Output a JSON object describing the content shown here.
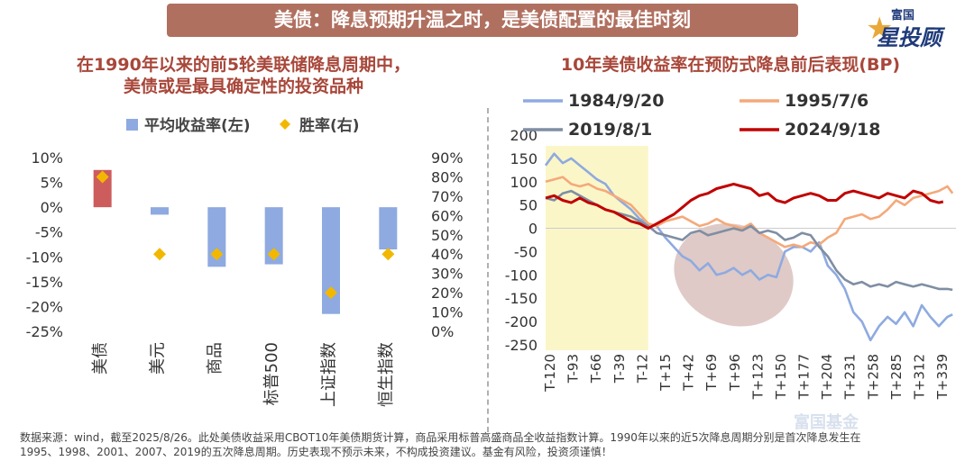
{
  "header": {
    "banner_title": "美债：降息预期升温之时，是美债配置的最佳时刻",
    "logo_top": "富国",
    "logo_main": "星投顾",
    "watermark": "富国基金"
  },
  "left_panel": {
    "title_line1": "在1990年以来的前5轮美联储降息周期中，",
    "title_line2": "美债或是最具确定性的投资品种"
  },
  "right_panel": {
    "title": "10年美债收益率在预防式降息前后表现(BP)"
  },
  "footnote": {
    "line1": "数据来源：wind，截至2025/8/26。此处美债收益采用CBOT10年美债期货计算，商品采用标普高盛商品全收益指数计算。1990年以来的近5次降息周期分别是首次降息发生在",
    "line2": "1995、1998、2001、2007、2019的五次降息周期。历史表现不预示未来，不构成投资建议。基金有风险，投资须谨慎！"
  },
  "colors": {
    "bar_blue": "#8eaae0",
    "bar_red": "#cd5c5c",
    "diamond": "#f2b800",
    "series_1984": "#8eaae0",
    "series_1995": "#f4a97a",
    "series_2019": "#7f8ea3",
    "series_2024": "#c00000",
    "highlight": "#fbf6c8",
    "ellipse": "#c9a6a2"
  },
  "chart_data": [
    {
      "type": "bar",
      "categories": [
        "美债",
        "美元",
        "商品",
        "标普500",
        "上证指数",
        "恒生指数"
      ],
      "series": [
        {
          "name": "平均收益率(左)",
          "axis": "left",
          "values": [
            7.5,
            -1.5,
            -12.0,
            -11.5,
            -21.5,
            -8.5
          ]
        },
        {
          "name": "胜率(右)",
          "axis": "right",
          "marker": "diamond",
          "values": [
            80,
            40,
            40,
            40,
            20,
            40
          ]
        }
      ],
      "left_axis": {
        "ylim": [
          -25,
          10
        ],
        "ticks": [
          "10%",
          "5%",
          "0%",
          "-5%",
          "-10%",
          "-15%",
          "-20%",
          "-25%"
        ]
      },
      "right_axis": {
        "ylim": [
          0,
          90
        ],
        "ticks": [
          "90%",
          "80%",
          "70%",
          "60%",
          "50%",
          "40%",
          "30%",
          "20%",
          "10%",
          "0%"
        ]
      },
      "legend": {
        "placement": "top"
      }
    },
    {
      "type": "line",
      "x_ticks": [
        "T-120",
        "T-93",
        "T-66",
        "T-39",
        "T-12",
        "T+15",
        "T+42",
        "T+69",
        "T+96",
        "T+123",
        "T+150",
        "T+177",
        "T+204",
        "T+231",
        "T+258",
        "T+285",
        "T+312",
        "T+339"
      ],
      "xlim": [
        -120,
        360
      ],
      "ylim": [
        -250,
        200
      ],
      "y_ticks": [
        "200",
        "150",
        "100",
        "50",
        "0",
        "-50",
        "-100",
        "-150",
        "-200",
        "-250"
      ],
      "highlight_range": [
        -120,
        0
      ],
      "legend": {
        "placement": "top"
      },
      "series": [
        {
          "name": "1984/9/20",
          "key": "series_1984",
          "points": [
            [
              -120,
              135
            ],
            [
              -110,
              160
            ],
            [
              -100,
              140
            ],
            [
              -90,
              150
            ],
            [
              -80,
              135
            ],
            [
              -70,
              120
            ],
            [
              -60,
              105
            ],
            [
              -50,
              95
            ],
            [
              -40,
              70
            ],
            [
              -30,
              55
            ],
            [
              -20,
              40
            ],
            [
              -10,
              20
            ],
            [
              0,
              10
            ],
            [
              10,
              5
            ],
            [
              20,
              -20
            ],
            [
              30,
              -40
            ],
            [
              40,
              -60
            ],
            [
              50,
              -70
            ],
            [
              60,
              -90
            ],
            [
              70,
              -75
            ],
            [
              80,
              -100
            ],
            [
              90,
              -95
            ],
            [
              100,
              -85
            ],
            [
              110,
              -100
            ],
            [
              120,
              -90
            ],
            [
              130,
              -110
            ],
            [
              140,
              -100
            ],
            [
              150,
              -105
            ],
            [
              160,
              -50
            ],
            [
              170,
              -40
            ],
            [
              180,
              -40
            ],
            [
              190,
              -50
            ],
            [
              200,
              -30
            ],
            [
              210,
              -80
            ],
            [
              220,
              -100
            ],
            [
              230,
              -130
            ],
            [
              240,
              -180
            ],
            [
              250,
              -200
            ],
            [
              260,
              -240
            ],
            [
              270,
              -210
            ],
            [
              280,
              -190
            ],
            [
              290,
              -205
            ],
            [
              300,
              -180
            ],
            [
              310,
              -210
            ],
            [
              320,
              -165
            ],
            [
              330,
              -190
            ],
            [
              340,
              -210
            ],
            [
              350,
              -190
            ],
            [
              356,
              -185
            ]
          ]
        },
        {
          "name": "1995/7/6",
          "key": "series_1995",
          "points": [
            [
              -120,
              100
            ],
            [
              -110,
              105
            ],
            [
              -100,
              110
            ],
            [
              -90,
              95
            ],
            [
              -80,
              90
            ],
            [
              -70,
              95
            ],
            [
              -60,
              85
            ],
            [
              -50,
              80
            ],
            [
              -40,
              70
            ],
            [
              -30,
              60
            ],
            [
              -20,
              50
            ],
            [
              -10,
              30
            ],
            [
              0,
              10
            ],
            [
              10,
              5
            ],
            [
              20,
              15
            ],
            [
              30,
              20
            ],
            [
              40,
              25
            ],
            [
              50,
              15
            ],
            [
              60,
              5
            ],
            [
              70,
              10
            ],
            [
              80,
              20
            ],
            [
              90,
              10
            ],
            [
              100,
              5
            ],
            [
              110,
              0
            ],
            [
              120,
              10
            ],
            [
              130,
              -10
            ],
            [
              140,
              -20
            ],
            [
              150,
              -30
            ],
            [
              160,
              -40
            ],
            [
              170,
              -35
            ],
            [
              180,
              -40
            ],
            [
              190,
              -30
            ],
            [
              200,
              -35
            ],
            [
              210,
              -20
            ],
            [
              220,
              -10
            ],
            [
              230,
              20
            ],
            [
              240,
              25
            ],
            [
              250,
              30
            ],
            [
              260,
              20
            ],
            [
              270,
              25
            ],
            [
              280,
              40
            ],
            [
              290,
              60
            ],
            [
              300,
              50
            ],
            [
              310,
              65
            ],
            [
              320,
              70
            ],
            [
              330,
              75
            ],
            [
              340,
              80
            ],
            [
              350,
              90
            ],
            [
              356,
              75
            ]
          ]
        },
        {
          "name": "2019/8/1",
          "key": "series_2019",
          "points": [
            [
              -120,
              65
            ],
            [
              -110,
              60
            ],
            [
              -100,
              75
            ],
            [
              -90,
              80
            ],
            [
              -80,
              70
            ],
            [
              -70,
              60
            ],
            [
              -60,
              50
            ],
            [
              -50,
              40
            ],
            [
              -40,
              35
            ],
            [
              -30,
              30
            ],
            [
              -20,
              25
            ],
            [
              -10,
              15
            ],
            [
              0,
              5
            ],
            [
              10,
              -10
            ],
            [
              20,
              -15
            ],
            [
              30,
              -20
            ],
            [
              40,
              -25
            ],
            [
              50,
              -10
            ],
            [
              60,
              -5
            ],
            [
              70,
              -15
            ],
            [
              80,
              -10
            ],
            [
              90,
              -5
            ],
            [
              100,
              0
            ],
            [
              110,
              -5
            ],
            [
              120,
              5
            ],
            [
              130,
              -10
            ],
            [
              140,
              -5
            ],
            [
              150,
              -10
            ],
            [
              160,
              -25
            ],
            [
              170,
              -20
            ],
            [
              180,
              -10
            ],
            [
              190,
              -15
            ],
            [
              200,
              -40
            ],
            [
              210,
              -60
            ],
            [
              220,
              -90
            ],
            [
              230,
              -110
            ],
            [
              240,
              -120
            ],
            [
              250,
              -115
            ],
            [
              260,
              -125
            ],
            [
              270,
              -120
            ],
            [
              280,
              -125
            ],
            [
              290,
              -115
            ],
            [
              300,
              -120
            ],
            [
              310,
              -125
            ],
            [
              320,
              -120
            ],
            [
              330,
              -125
            ],
            [
              340,
              -130
            ],
            [
              350,
              -130
            ],
            [
              356,
              -132
            ]
          ]
        },
        {
          "name": "2024/9/18",
          "key": "series_2024",
          "points": [
            [
              -120,
              65
            ],
            [
              -110,
              70
            ],
            [
              -100,
              60
            ],
            [
              -90,
              55
            ],
            [
              -80,
              65
            ],
            [
              -70,
              55
            ],
            [
              -60,
              50
            ],
            [
              -50,
              40
            ],
            [
              -40,
              35
            ],
            [
              -30,
              25
            ],
            [
              -20,
              15
            ],
            [
              -10,
              10
            ],
            [
              0,
              0
            ],
            [
              10,
              10
            ],
            [
              20,
              20
            ],
            [
              30,
              30
            ],
            [
              40,
              45
            ],
            [
              50,
              60
            ],
            [
              60,
              70
            ],
            [
              70,
              75
            ],
            [
              80,
              85
            ],
            [
              90,
              90
            ],
            [
              100,
              95
            ],
            [
              110,
              90
            ],
            [
              120,
              85
            ],
            [
              130,
              70
            ],
            [
              140,
              75
            ],
            [
              150,
              60
            ],
            [
              160,
              55
            ],
            [
              170,
              65
            ],
            [
              180,
              70
            ],
            [
              190,
              75
            ],
            [
              200,
              70
            ],
            [
              210,
              60
            ],
            [
              220,
              60
            ],
            [
              230,
              75
            ],
            [
              240,
              80
            ],
            [
              250,
              75
            ],
            [
              260,
              70
            ],
            [
              270,
              65
            ],
            [
              280,
              75
            ],
            [
              290,
              70
            ],
            [
              300,
              65
            ],
            [
              310,
              80
            ],
            [
              320,
              75
            ],
            [
              330,
              60
            ],
            [
              340,
              55
            ],
            [
              345,
              57
            ]
          ]
        }
      ]
    }
  ]
}
